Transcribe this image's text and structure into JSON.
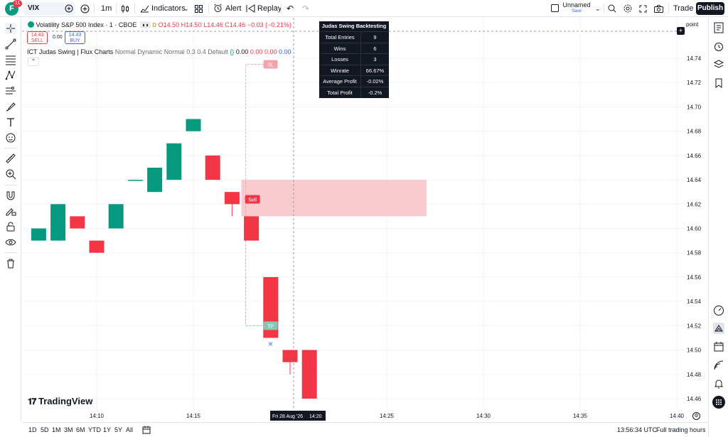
{
  "topbar": {
    "avatar_letter": "F",
    "avatar_badge": "11",
    "symbol": "VIX",
    "interval": "1m",
    "indicators_label": "Indicators",
    "alert_label": "Alert",
    "replay_label": "Replay",
    "layout_name": "Unnamed",
    "layout_save": "Save",
    "trade_label": "Trade",
    "publish_label": "Publish"
  },
  "legend": {
    "title": "Volatility S&P 500 Index · 1 · CBOE",
    "delay_badge": "D",
    "open": "O14.50",
    "high": "H14.50",
    "low": "L14.46",
    "close": "C14.46",
    "change": "−0.03 (−0.21%)",
    "sell_price": "14.43",
    "sell_label": "SELL",
    "spread": "0.00",
    "buy_price": "14.43",
    "buy_label": "BUY",
    "indicator": "ICT Judas Swing | Flux Charts",
    "indicator_params": "Normal Dynamic Normal 0.3 0.4 Default",
    "indicator_values": [
      "0.00",
      "0.00",
      "0.00",
      "0.00"
    ]
  },
  "backtest": {
    "title": "Judas Swing Backtesting",
    "rows": [
      {
        "k": "Total Entries",
        "v": "9"
      },
      {
        "k": "Wins",
        "v": "6"
      },
      {
        "k": "Losses",
        "v": "3"
      },
      {
        "k": "Winrate",
        "v": "66.67%"
      },
      {
        "k": "Average Profit",
        "v": "-0.02%"
      },
      {
        "k": "Total Profit",
        "v": "-0.2%"
      }
    ]
  },
  "chart_data": {
    "type": "candlestick",
    "colors": {
      "up": "#089981",
      "down": "#f23645",
      "zone": "#f7c5ca",
      "sl": "#f5a3aa",
      "tp": "#7fc9b5"
    },
    "ylim": [
      14.45,
      14.765
    ],
    "y_ticks": [
      "14.74",
      "14.72",
      "14.70",
      "14.68",
      "14.66",
      "14.64",
      "14.62",
      "14.60",
      "14.58",
      "14.56",
      "14.54",
      "14.52",
      "14.50",
      "14.48",
      "14.46"
    ],
    "x_ticks": [
      "14:10",
      "14:15",
      "14:25",
      "14:30",
      "14:35",
      "14:40"
    ],
    "crosshair_label": "Fri 28 Aug '26",
    "crosshair_time": "14:20",
    "candles": [
      {
        "t": "14:07",
        "o": 14.59,
        "h": 14.6,
        "l": 14.59,
        "c": 14.6
      },
      {
        "t": "14:08",
        "o": 14.59,
        "h": 14.62,
        "l": 14.59,
        "c": 14.62
      },
      {
        "t": "14:09",
        "o": 14.61,
        "h": 14.61,
        "l": 14.6,
        "c": 14.6
      },
      {
        "t": "14:10",
        "o": 14.59,
        "h": 14.59,
        "l": 14.58,
        "c": 14.58
      },
      {
        "t": "14:11",
        "o": 14.6,
        "h": 14.62,
        "l": 14.6,
        "c": 14.62
      },
      {
        "t": "14:12",
        "o": 14.64,
        "h": 14.64,
        "l": 14.64,
        "c": 14.64
      },
      {
        "t": "14:13",
        "o": 14.63,
        "h": 14.65,
        "l": 14.63,
        "c": 14.65
      },
      {
        "t": "14:14",
        "o": 14.64,
        "h": 14.67,
        "l": 14.64,
        "c": 14.67
      },
      {
        "t": "14:15",
        "o": 14.68,
        "h": 14.69,
        "l": 14.68,
        "c": 14.69
      },
      {
        "t": "14:16",
        "o": 14.66,
        "h": 14.66,
        "l": 14.64,
        "c": 14.64
      },
      {
        "t": "14:17",
        "o": 14.63,
        "h": 14.63,
        "l": 14.61,
        "c": 14.62
      },
      {
        "t": "14:18",
        "o": 14.61,
        "h": 14.61,
        "l": 14.59,
        "c": 14.59
      },
      {
        "t": "14:19",
        "o": 14.56,
        "h": 14.56,
        "l": 14.51,
        "c": 14.51
      },
      {
        "t": "14:20",
        "o": 14.5,
        "h": 14.5,
        "l": 14.48,
        "c": 14.49
      },
      {
        "t": "14:21",
        "o": 14.5,
        "h": 14.5,
        "l": 14.46,
        "c": 14.46
      }
    ],
    "sell_zone": {
      "from_time": "14:17",
      "top": 14.64,
      "bottom": 14.61
    },
    "signal_label": "Sell",
    "sl_label": "SL",
    "tp_label": "TP"
  },
  "bottombar": {
    "ranges": [
      "1D",
      "5D",
      "1M",
      "3M",
      "6M",
      "YTD",
      "1Y",
      "5Y",
      "All"
    ],
    "clock": "13:56:34 UTC",
    "session": "Full trading hours"
  },
  "watermark": "TradingView",
  "price_axis_header": "point"
}
